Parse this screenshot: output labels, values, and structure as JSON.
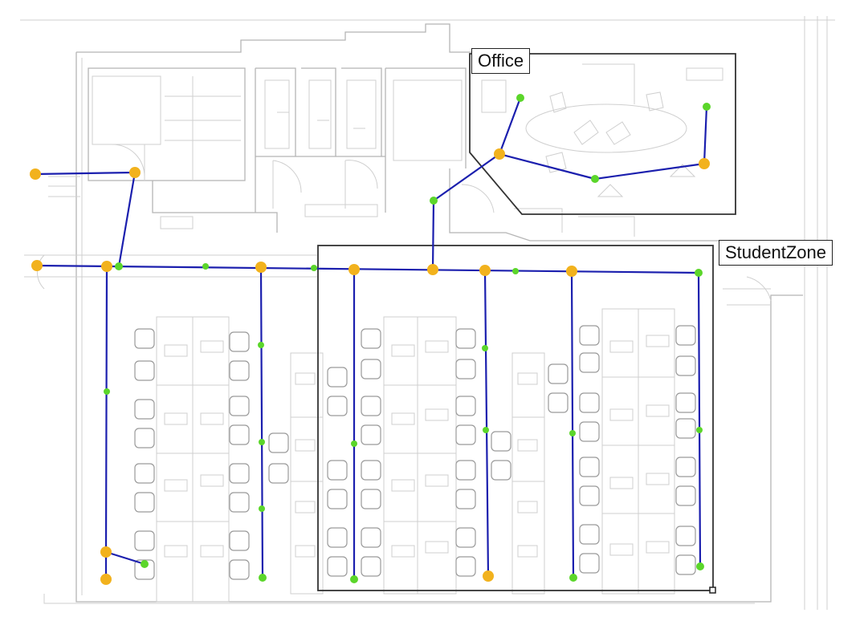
{
  "zones": {
    "office_label": "Office",
    "student_label": "StudentZone"
  },
  "colors": {
    "path_line": "#1b1fae",
    "junction_node": "#f2b21d",
    "waypoint_node": "#5bd62a",
    "zone_border": "#333333",
    "floor_plan_lines": "#b5b5b5"
  }
}
